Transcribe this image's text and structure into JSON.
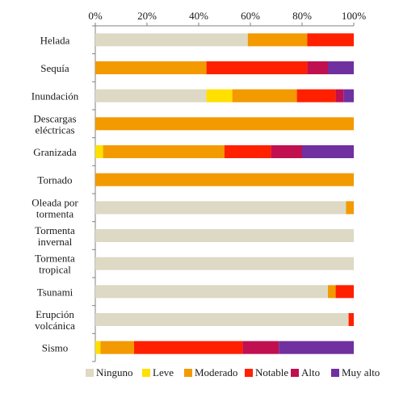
{
  "chart_data": {
    "type": "bar",
    "orientation": "horizontal",
    "stacked": true,
    "percent": true,
    "axis": {
      "xlim": [
        0,
        100
      ],
      "ticks": [
        0,
        20,
        40,
        60,
        80,
        100
      ],
      "tick_labels": [
        "0%",
        "20%",
        "40%",
        "60%",
        "80%",
        "100%"
      ],
      "position": "top"
    },
    "grid": false,
    "legend_position": "bottom",
    "categories": [
      "Helada",
      "Sequía",
      "Inundación",
      "Descargas eléctricas",
      "Granizada",
      "Tornado",
      "Oleada por tormenta",
      "Tormenta invernal",
      "Tormenta tropical",
      "Tsunami",
      "Erupción volcánica",
      "Sismo"
    ],
    "category_labels": [
      [
        "Helada"
      ],
      [
        "Sequía"
      ],
      [
        "Inundación"
      ],
      [
        "Descargas",
        "eléctricas"
      ],
      [
        "Granizada"
      ],
      [
        "Tornado"
      ],
      [
        "Oleada por",
        "tormenta"
      ],
      [
        "Tormenta",
        "invernal"
      ],
      [
        "Tormenta",
        "tropical"
      ],
      [
        "Tsunami"
      ],
      [
        "Erupción",
        "volcánica"
      ],
      [
        "Sismo"
      ]
    ],
    "series": [
      {
        "name": "Ninguno",
        "color": "#ddd9c4",
        "values": [
          59,
          0,
          43,
          0,
          0,
          0,
          97,
          100,
          100,
          90,
          98,
          0
        ]
      },
      {
        "name": "Leve",
        "color": "#ffe000",
        "values": [
          0,
          0,
          10,
          0,
          3,
          0,
          0,
          0,
          0,
          0,
          0,
          2
        ]
      },
      {
        "name": "Moderado",
        "color": "#f29a00",
        "values": [
          23,
          43,
          25,
          100,
          47,
          100,
          3,
          0,
          0,
          3,
          0,
          13
        ]
      },
      {
        "name": "Notable",
        "color": "#ff2000",
        "values": [
          18,
          39,
          15,
          0,
          18,
          0,
          0,
          0,
          0,
          7,
          2,
          42
        ]
      },
      {
        "name": "Alto",
        "color": "#c0104f",
        "values": [
          0,
          8,
          3,
          0,
          12,
          0,
          0,
          0,
          0,
          0,
          0,
          14
        ]
      },
      {
        "name": "Muy alto",
        "color": "#7030a0",
        "values": [
          0,
          10,
          4,
          0,
          20,
          0,
          0,
          0,
          0,
          0,
          0,
          29
        ]
      }
    ]
  }
}
